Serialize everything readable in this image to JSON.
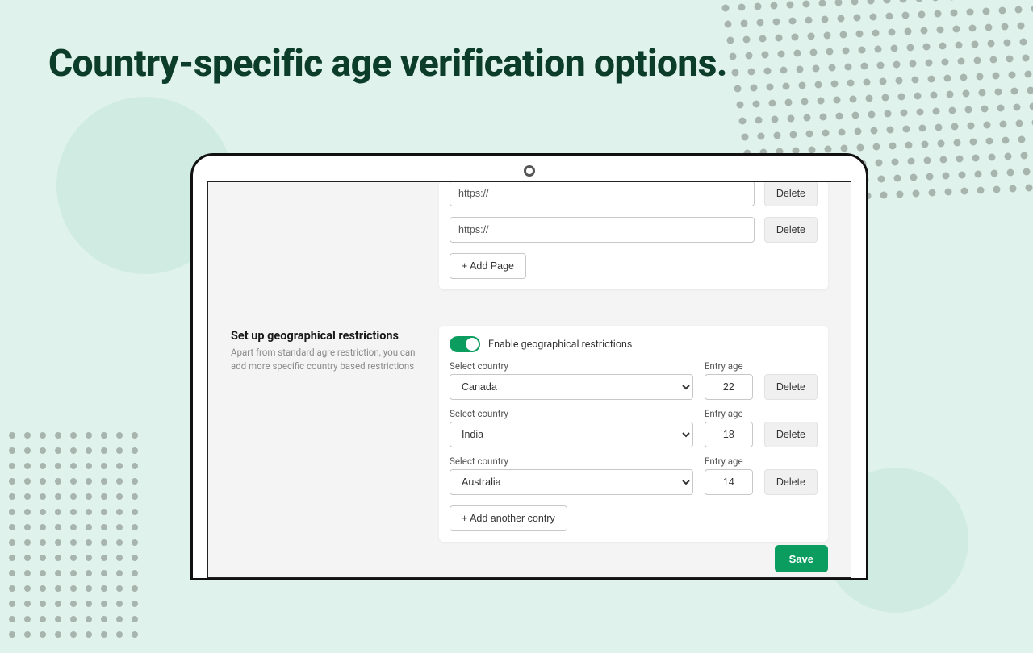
{
  "headline": "Country-specific age verification options.",
  "colors": {
    "bg": "#e0f2ec",
    "headline": "#0b3d2a",
    "accent": "#0a9d5f",
    "dot": "#a8b5ae",
    "circle": "#d0ece2"
  },
  "pages_card": {
    "urls": [
      "https://",
      "https://"
    ],
    "delete_label": "Delete",
    "add_page_label": "+ Add Page"
  },
  "geo_section": {
    "title": "Set up geographical restrictions",
    "subtitle": "Apart from standard agre restriction, you can add more specific country based restrictions",
    "toggle_label": "Enable geographical restrictions",
    "toggle_on": true,
    "country_label": "Select country",
    "age_label": "Entry age",
    "delete_label": "Delete",
    "add_country_label": "+ Add another contry",
    "rows": [
      {
        "country": "Canada",
        "age": "22"
      },
      {
        "country": "India",
        "age": "18"
      },
      {
        "country": "Australia",
        "age": "14"
      }
    ]
  },
  "save_label": "Save"
}
